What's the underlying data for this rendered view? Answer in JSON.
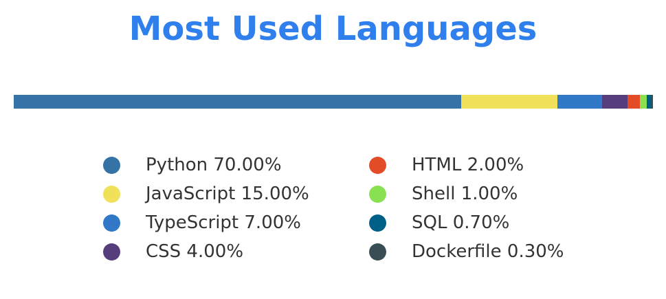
{
  "chart_data": {
    "type": "bar",
    "subtype": "stacked-percentage",
    "title": "Most Used Languages",
    "title_color": "#2f80ed",
    "legend_placement": "bottom",
    "grid": false,
    "series": [
      {
        "name": "Python",
        "value": 70.0,
        "label": "Python 70.00%",
        "color": "#3572a5"
      },
      {
        "name": "JavaScript",
        "value": 15.0,
        "label": "JavaScript 15.00%",
        "color": "#f1e05a"
      },
      {
        "name": "TypeScript",
        "value": 7.0,
        "label": "TypeScript 7.00%",
        "color": "#3178c6"
      },
      {
        "name": "CSS",
        "value": 4.0,
        "label": "CSS 4.00%",
        "color": "#563d7c"
      },
      {
        "name": "HTML",
        "value": 2.0,
        "label": "HTML 2.00%",
        "color": "#e34c26"
      },
      {
        "name": "Shell",
        "value": 1.0,
        "label": "Shell 1.00%",
        "color": "#89e051"
      },
      {
        "name": "SQL",
        "value": 0.7,
        "label": "SQL 0.70%",
        "color": "#005f87"
      },
      {
        "name": "Dockerfile",
        "value": 0.3,
        "label": "Dockerfile 0.30%",
        "color": "#384d54"
      }
    ]
  }
}
